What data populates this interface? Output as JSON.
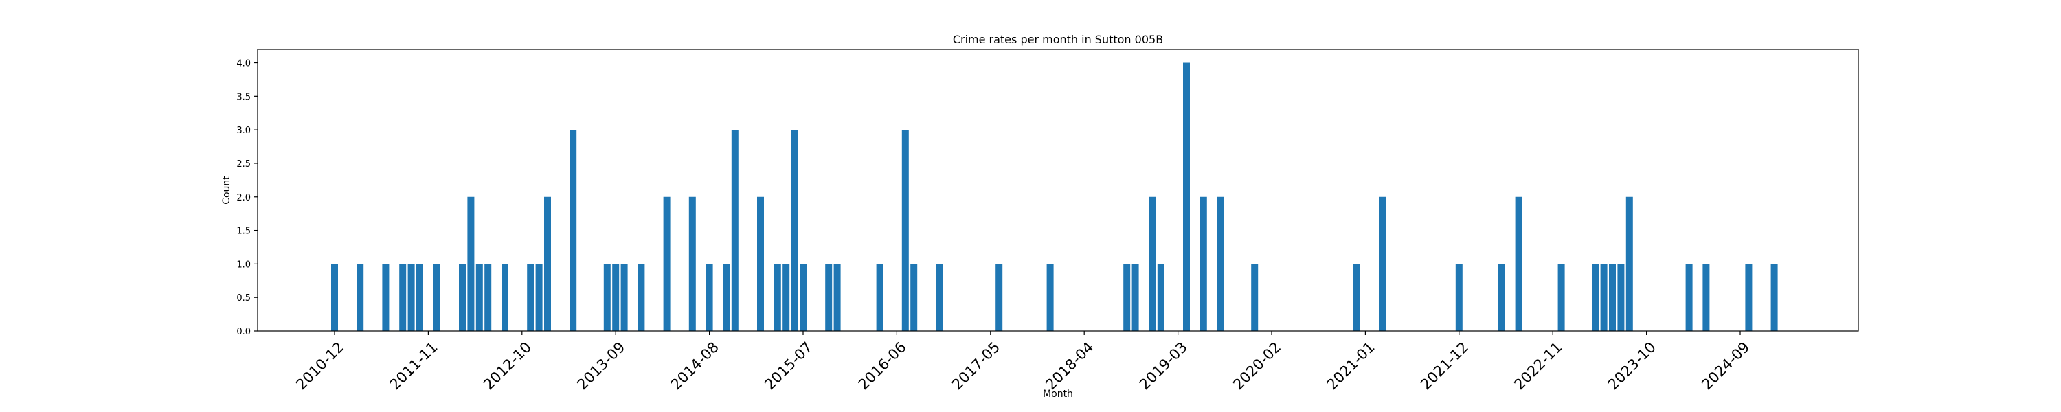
{
  "chart_data": {
    "type": "bar",
    "title": "Crime rates per month in Sutton 005B",
    "xlabel": "Month",
    "ylabel": "Count",
    "ylim": [
      0,
      4.2
    ],
    "yticks": [
      0.0,
      0.5,
      1.0,
      1.5,
      2.0,
      2.5,
      3.0,
      3.5,
      4.0
    ],
    "ytick_labels": [
      "0.0",
      "0.5",
      "1.0",
      "1.5",
      "2.0",
      "2.5",
      "3.0",
      "3.5",
      "4.0"
    ],
    "xticks": [
      "2010-12",
      "2011-11",
      "2012-10",
      "2013-09",
      "2014-08",
      "2015-07",
      "2016-06",
      "2017-05",
      "2018-04",
      "2019-03",
      "2020-02",
      "2021-01",
      "2021-12",
      "2022-11",
      "2023-10",
      "2024-09"
    ],
    "grid": false,
    "color": "#1f77b4",
    "categories": [
      "2010-12",
      "2011-03",
      "2011-06",
      "2011-08",
      "2011-09",
      "2011-10",
      "2011-12",
      "2012-03",
      "2012-04",
      "2012-05",
      "2012-06",
      "2012-08",
      "2012-11",
      "2012-12",
      "2013-01",
      "2013-04",
      "2013-08",
      "2013-09",
      "2013-10",
      "2013-12",
      "2014-03",
      "2014-06",
      "2014-08",
      "2014-10",
      "2014-11",
      "2015-02",
      "2015-04",
      "2015-05",
      "2015-06",
      "2015-07",
      "2015-10",
      "2015-11",
      "2016-04",
      "2016-07",
      "2016-08",
      "2016-11",
      "2017-06",
      "2017-12",
      "2018-09",
      "2018-10",
      "2018-12",
      "2019-01",
      "2019-04",
      "2019-06",
      "2019-08",
      "2019-12",
      "2020-12",
      "2021-03",
      "2021-12",
      "2022-05",
      "2022-07",
      "2022-12",
      "2023-04",
      "2023-05",
      "2023-06",
      "2023-07",
      "2023-08",
      "2024-03",
      "2024-05",
      "2024-10",
      "2025-01"
    ],
    "values": [
      1,
      1,
      1,
      1,
      1,
      1,
      1,
      1,
      2,
      1,
      1,
      1,
      1,
      1,
      2,
      3,
      1,
      1,
      1,
      1,
      2,
      2,
      1,
      1,
      3,
      2,
      1,
      1,
      3,
      1,
      1,
      1,
      1,
      3,
      1,
      1,
      1,
      1,
      1,
      1,
      2,
      1,
      4,
      2,
      2,
      1,
      1,
      2,
      1,
      1,
      2,
      1,
      1,
      1,
      1,
      1,
      2,
      1,
      1,
      1,
      1
    ]
  }
}
